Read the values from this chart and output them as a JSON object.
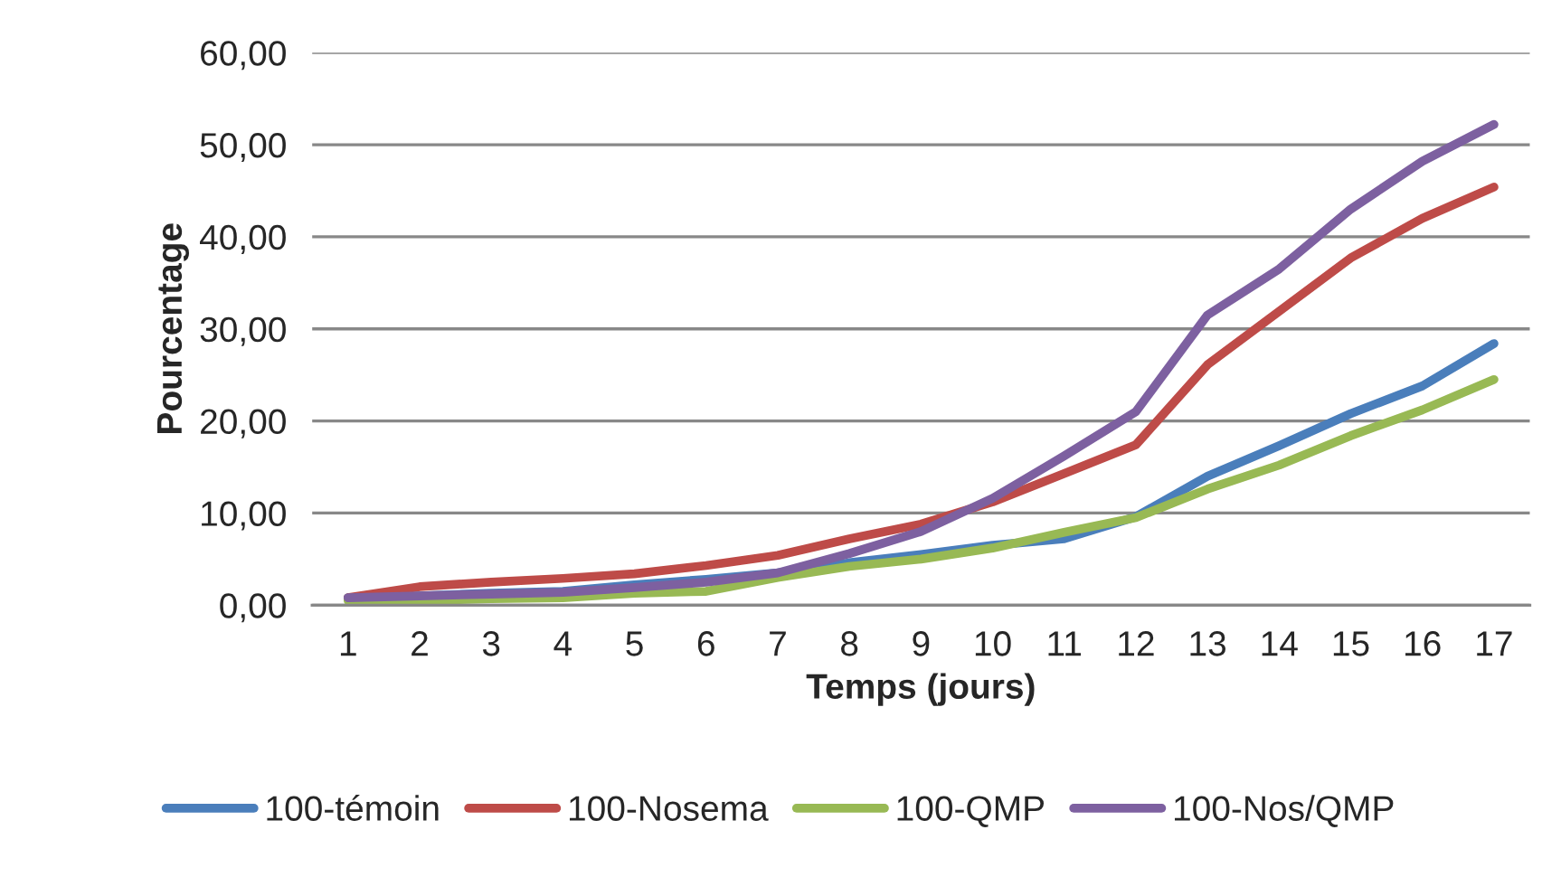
{
  "chart_data": {
    "type": "line",
    "xlabel": "Temps (jours)",
    "ylabel": "Pourcentage",
    "categories": [
      "1",
      "2",
      "3",
      "4",
      "5",
      "6",
      "7",
      "8",
      "9",
      "10",
      "11",
      "12",
      "13",
      "14",
      "15",
      "16",
      "17"
    ],
    "ylim": [
      0,
      60
    ],
    "yticks": [
      {
        "value": 0,
        "label": "0,00"
      },
      {
        "value": 10,
        "label": "10,00"
      },
      {
        "value": 20,
        "label": "20,00"
      },
      {
        "value": 30,
        "label": "30,00"
      },
      {
        "value": 40,
        "label": "40,00"
      },
      {
        "value": 50,
        "label": "50,00"
      },
      {
        "value": 60,
        "label": "60,00"
      }
    ],
    "grid": "y",
    "legend": "bottom",
    "marker": "none",
    "line_style": "solid",
    "series": [
      {
        "name": "100-témoin",
        "color": "#4a7ebb",
        "values": [
          0.8,
          1.0,
          1.3,
          1.5,
          2.2,
          2.8,
          3.5,
          4.6,
          5.5,
          6.5,
          7.2,
          9.6,
          14.0,
          17.3,
          20.8,
          23.8,
          28.4
        ]
      },
      {
        "name": "100-Nosema",
        "color": "#be4b48",
        "values": [
          0.8,
          2.0,
          2.5,
          2.9,
          3.4,
          4.3,
          5.4,
          7.2,
          8.8,
          11.2,
          14.3,
          17.4,
          26.1,
          31.9,
          37.7,
          42.0,
          45.4
        ]
      },
      {
        "name": "100-QMP",
        "color": "#98b954",
        "values": [
          0.5,
          0.5,
          0.7,
          0.8,
          1.3,
          1.5,
          3.0,
          4.2,
          5.0,
          6.2,
          7.9,
          9.5,
          12.6,
          15.2,
          18.4,
          21.2,
          24.5
        ]
      },
      {
        "name": "100-Nos/QMP",
        "color": "#7d60a0",
        "values": [
          0.8,
          1.0,
          1.2,
          1.4,
          1.9,
          2.5,
          3.5,
          5.6,
          8.0,
          11.6,
          16.2,
          21.0,
          31.5,
          36.5,
          43.0,
          48.2,
          52.2
        ]
      }
    ]
  }
}
